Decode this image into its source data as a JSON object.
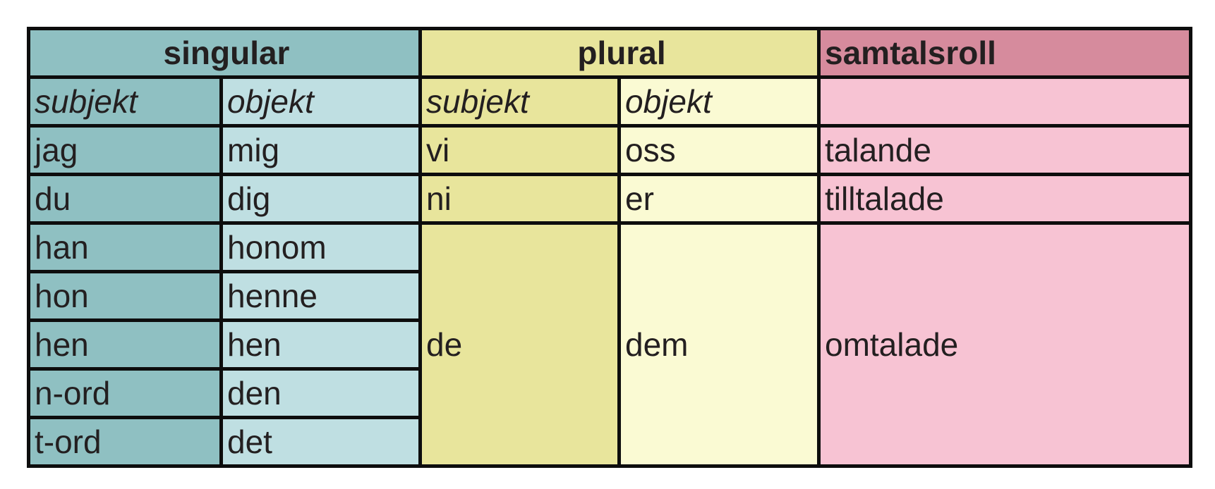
{
  "colors": {
    "singular_subject": "#8fc0c2",
    "singular_object": "#bfdfe2",
    "plural_subject": "#e8e59c",
    "plural_object": "#fafad3",
    "role_header": "#d68b9d",
    "role_cell": "#f7c3d3",
    "border": "#0d0d0d"
  },
  "headers": {
    "singular": "singular",
    "plural": "plural",
    "role": "samtalsroll"
  },
  "subheaders": {
    "singular_subject": "subjekt",
    "singular_object": "objekt",
    "plural_subject": "subjekt",
    "plural_object": "objekt",
    "role": ""
  },
  "rows": [
    {
      "sg_subject": "jag",
      "sg_object": "mig",
      "pl_subject": "vi",
      "pl_object": "oss",
      "role": "talande"
    },
    {
      "sg_subject": "du",
      "sg_object": "dig",
      "pl_subject": "ni",
      "pl_object": "er",
      "role": "tilltalade"
    },
    {
      "sg_subject": "han",
      "sg_object": "honom"
    },
    {
      "sg_subject": "hon",
      "sg_object": "henne"
    },
    {
      "sg_subject": "hen",
      "sg_object": "hen"
    },
    {
      "sg_subject": "n-ord",
      "sg_object": "den"
    },
    {
      "sg_subject": "t-ord",
      "sg_object": "det"
    }
  ],
  "third_person_plural": {
    "pl_subject": "de",
    "pl_object": "dem",
    "role": "omtalade"
  }
}
